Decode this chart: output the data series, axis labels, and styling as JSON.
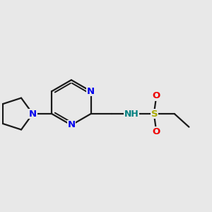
{
  "background_color": "#e8e8e8",
  "bond_color": "#1a1a1a",
  "N_color": "#0000ee",
  "S_color": "#aaaa00",
  "O_color": "#ee0000",
  "NH_color": "#008080",
  "figsize": [
    3.0,
    3.0
  ],
  "dpi": 100,
  "bond_lw": 1.6,
  "inner_lw": 1.4,
  "font_size": 9.5,
  "xlim": [
    -1.8,
    4.2
  ],
  "ylim": [
    -1.8,
    1.8
  ]
}
